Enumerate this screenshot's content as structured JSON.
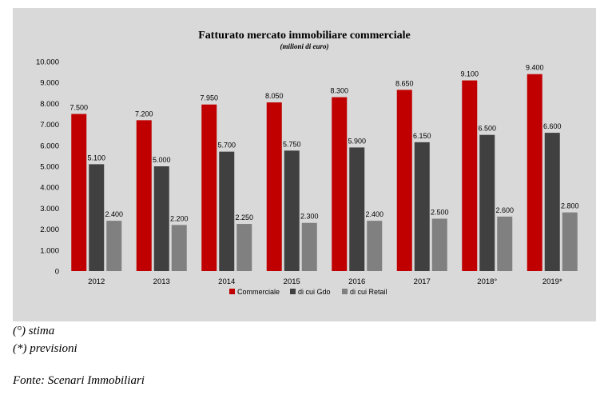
{
  "chart_data": {
    "type": "bar",
    "title": "Fatturato mercato immobiliare commerciale",
    "subtitle": "(milioni di euro)",
    "categories": [
      "2012",
      "2013",
      "2014",
      "2015",
      "2016",
      "2017",
      "2018°",
      "2019*"
    ],
    "series": [
      {
        "name": "Commerciale",
        "color": "#c00000",
        "values": [
          7500,
          7200,
          7950,
          8050,
          8300,
          8650,
          9100,
          9400
        ],
        "labels": [
          "7.500",
          "7.200",
          "7.950",
          "8.050",
          "8.300",
          "8.650",
          "9.100",
          "9.400"
        ]
      },
      {
        "name": "di cui Gdo",
        "color": "#404040",
        "values": [
          5100,
          5000,
          5700,
          5750,
          5900,
          6150,
          6500,
          6600
        ],
        "labels": [
          "5.100",
          "5.000",
          "5.700",
          "5.750",
          "5.900",
          "6.150",
          "6.500",
          "6.600"
        ]
      },
      {
        "name": "di cui Retail",
        "color": "#808080",
        "values": [
          2400,
          2200,
          2250,
          2300,
          2400,
          2500,
          2600,
          2800
        ],
        "labels": [
          "2.400",
          "2.200",
          "2.250",
          "2.300",
          "2.400",
          "2.500",
          "2.600",
          "2.800"
        ]
      }
    ],
    "ylim": [
      0,
      10000
    ],
    "y_ticks": [
      0,
      1000,
      2000,
      3000,
      4000,
      5000,
      6000,
      7000,
      8000,
      9000,
      10000
    ],
    "y_tick_labels": [
      "0",
      "1.000",
      "2.000",
      "3.000",
      "4.000",
      "5.000",
      "6.000",
      "7.000",
      "8.000",
      "9.000",
      "10.000"
    ],
    "grid": false,
    "legend_position": "bottom"
  },
  "notes": {
    "estimate": "(°) stima",
    "forecast": "(*) previsioni",
    "source": "Fonte: Scenari Immobiliari"
  }
}
